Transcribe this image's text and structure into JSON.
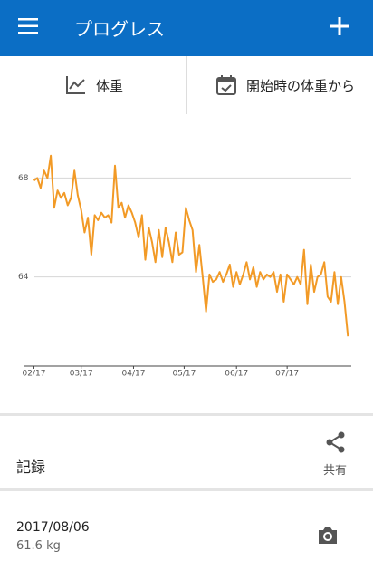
{
  "app_bar": {
    "title": "プログレス"
  },
  "tabs": [
    "体重",
    "開始時の体重から"
  ],
  "chart_data": {
    "type": "line",
    "color": "#f29a26",
    "x": [
      0,
      2,
      4,
      6,
      8,
      10,
      12,
      14,
      16,
      18,
      20,
      22,
      24,
      26,
      28,
      30,
      32,
      34,
      36,
      38,
      40,
      42,
      44,
      46,
      48,
      50,
      52,
      54,
      56,
      58,
      60,
      62,
      64,
      66,
      68,
      70,
      72,
      74,
      76,
      78,
      80,
      82,
      84,
      86,
      88,
      90,
      92,
      94,
      96,
      98,
      100,
      102,
      104,
      106,
      108,
      110,
      112,
      114,
      116,
      118,
      120,
      122,
      124,
      126,
      128,
      130,
      132,
      134,
      136,
      138,
      140,
      142,
      144,
      146,
      148,
      150,
      152,
      154,
      156,
      158,
      160,
      162,
      164,
      166,
      168,
      170,
      172,
      174,
      176,
      178,
      180,
      182,
      184,
      186
    ],
    "values": [
      67.9,
      68.0,
      67.6,
      68.3,
      68.0,
      68.9,
      66.8,
      67.5,
      67.2,
      67.4,
      66.9,
      67.2,
      68.3,
      67.3,
      66.7,
      65.8,
      66.4,
      64.9,
      66.5,
      66.3,
      66.6,
      66.4,
      66.5,
      66.2,
      68.5,
      66.8,
      67.0,
      66.4,
      66.9,
      66.6,
      66.2,
      65.6,
      66.5,
      64.7,
      66.0,
      65.4,
      64.6,
      65.9,
      64.8,
      66.0,
      65.4,
      64.6,
      65.8,
      64.9,
      65.0,
      66.8,
      66.3,
      65.9,
      64.2,
      65.3,
      64.0,
      62.6,
      64.1,
      63.8,
      63.9,
      64.2,
      63.8,
      64.1,
      64.5,
      63.6,
      64.2,
      63.7,
      64.1,
      64.6,
      63.9,
      64.4,
      63.6,
      64.2,
      63.9,
      64.1,
      64.0,
      64.2,
      63.4,
      64.1,
      63.0,
      64.1,
      63.9,
      63.7,
      64.0,
      63.7,
      65.1,
      62.9,
      64.5,
      63.4,
      64.0,
      64.1,
      64.6,
      63.2,
      63.0,
      64.2,
      62.9,
      64.0,
      63.0,
      61.6
    ],
    "xlim": [
      -4,
      188
    ],
    "xticks": [
      {
        "value": 0,
        "label": "02/17"
      },
      {
        "value": 28,
        "label": "03/17"
      },
      {
        "value": 59,
        "label": "04/17"
      },
      {
        "value": 89,
        "label": "05/17"
      },
      {
        "value": 120,
        "label": "06/17"
      },
      {
        "value": 150,
        "label": "07/17"
      }
    ],
    "ylim": [
      60.4,
      69.7
    ],
    "yticks": [
      64,
      68
    ],
    "grid": true
  },
  "records": {
    "heading": "記録",
    "share": "共有",
    "entries": [
      {
        "date": "2017/08/06",
        "weight": "61.6 kg"
      }
    ]
  }
}
